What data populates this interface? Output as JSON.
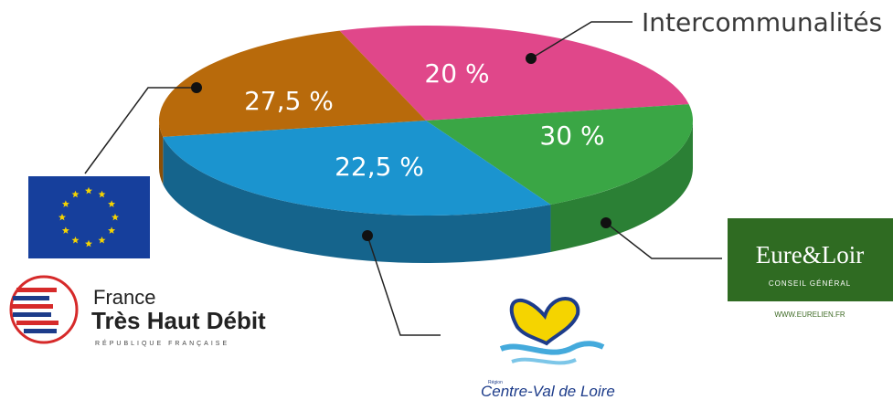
{
  "chart_data": {
    "type": "pie",
    "title": "",
    "slices": [
      {
        "label": "27,5 %",
        "value": 27.5,
        "color": "#e0478a",
        "side": "#b8336f",
        "source": "Union européenne (logo)"
      },
      {
        "label": "20 %",
        "value": 20,
        "color": "#3aa645",
        "side": "#2b8035",
        "source": "Intercommunalités"
      },
      {
        "label": "30 %",
        "value": 30,
        "color": "#1b94cf",
        "side": "#15648c",
        "source": "Eure & Loir (logo)"
      },
      {
        "label": "22,5 %",
        "value": 22.5,
        "color": "#b86a0b",
        "side": "#8a4f08",
        "source": "Centre-Val de Loire (logo)"
      }
    ]
  },
  "callouts": {
    "intercommunalites": "Intercommunalités"
  },
  "logos": {
    "eure_loir": {
      "title": "Eure&Loir",
      "subtitle": "CONSEIL GÉNÉRAL",
      "url": "WWW.EURELIEN.FR",
      "color": "#2f6b22"
    },
    "france_thd": {
      "line1": "France",
      "line2": "Très Haut Débit",
      "line3": "RÉPUBLIQUE FRANÇAISE"
    },
    "centre_val_de_loire": {
      "small": "Région",
      "name": "Centre-Val de Loire"
    },
    "eu_flag": {
      "color": "#163f9c",
      "star_color": "#f5d400"
    }
  }
}
